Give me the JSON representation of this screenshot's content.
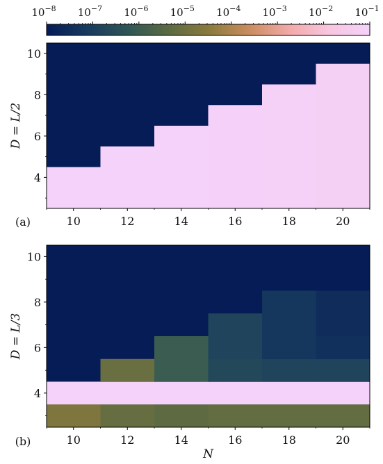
{
  "colorbar": {
    "scale": "log",
    "range": [
      1e-08,
      0.1
    ],
    "tick_labels": [
      {
        "base": "10",
        "exp": "−8"
      },
      {
        "base": "10",
        "exp": "−7"
      },
      {
        "base": "10",
        "exp": "−6"
      },
      {
        "base": "10",
        "exp": "−5"
      },
      {
        "base": "10",
        "exp": "−4"
      },
      {
        "base": "10",
        "exp": "−3"
      },
      {
        "base": "10",
        "exp": "−2"
      },
      {
        "base": "10",
        "exp": "−1"
      }
    ],
    "tick_values": [
      1e-08,
      1e-07,
      1e-06,
      1e-05,
      0.0001,
      0.001,
      0.01,
      0.1
    ],
    "colormap": [
      "#051c57",
      "#173a5e",
      "#2e5656",
      "#5a6a42",
      "#8a7a3e",
      "#c98c5e",
      "#f3a9a8",
      "#f7c6e0",
      "#f5d2fa"
    ]
  },
  "chart_data": [
    {
      "type": "heatmap",
      "panel_label": "(a)",
      "ylabel": "D = L/2",
      "xlabel": "",
      "x_ticks": [
        10,
        12,
        14,
        16,
        18,
        20
      ],
      "y_ticks": [
        4,
        6,
        8,
        10
      ],
      "xlim": [
        9,
        21
      ],
      "ylim": [
        2.5,
        10.5
      ],
      "grid": false,
      "background_value": 1e-08,
      "cells": [
        {
          "x0": 9,
          "x1": 11,
          "y0": 2.5,
          "y1": 4.5,
          "value": 0.1
        },
        {
          "x0": 11,
          "x1": 13,
          "y0": 2.5,
          "y1": 5.5,
          "value": 0.1
        },
        {
          "x0": 13,
          "x1": 15,
          "y0": 2.5,
          "y1": 6.5,
          "value": 0.1
        },
        {
          "x0": 15,
          "x1": 17,
          "y0": 2.5,
          "y1": 7.5,
          "value": 0.09
        },
        {
          "x0": 17,
          "x1": 19,
          "y0": 2.5,
          "y1": 8.5,
          "value": 0.08
        },
        {
          "x0": 19,
          "x1": 21,
          "y0": 2.5,
          "y1": 9.5,
          "value": 0.07
        }
      ]
    },
    {
      "type": "heatmap",
      "panel_label": "(b)",
      "ylabel": "D = L/3",
      "xlabel": "N",
      "x_ticks": [
        10,
        12,
        14,
        16,
        18,
        20
      ],
      "y_ticks": [
        4,
        6,
        8,
        10
      ],
      "xlim": [
        9,
        21
      ],
      "ylim": [
        2.5,
        10.5
      ],
      "grid": false,
      "background_value": 1e-08,
      "cells": [
        {
          "x0": 9,
          "x1": 21,
          "y0": 3.5,
          "y1": 4.5,
          "value": 0.1
        },
        {
          "x0": 9,
          "x1": 11,
          "y0": 2.5,
          "y1": 3.5,
          "value": 2e-05
        },
        {
          "x0": 11,
          "x1": 13,
          "y0": 2.5,
          "y1": 3.5,
          "value": 7e-06
        },
        {
          "x0": 13,
          "x1": 15,
          "y0": 2.5,
          "y1": 3.5,
          "value": 5e-06
        },
        {
          "x0": 15,
          "x1": 21,
          "y0": 2.5,
          "y1": 3.5,
          "value": 6e-06
        },
        {
          "x0": 11,
          "x1": 13,
          "y0": 4.5,
          "y1": 5.5,
          "value": 8e-06
        },
        {
          "x0": 13,
          "x1": 15,
          "y0": 4.5,
          "y1": 6.5,
          "value": 1e-06
        },
        {
          "x0": 15,
          "x1": 17,
          "y0": 4.5,
          "y1": 5.5,
          "value": 2e-07
        },
        {
          "x0": 15,
          "x1": 17,
          "y0": 5.5,
          "y1": 7.5,
          "value": 1.5e-07
        },
        {
          "x0": 17,
          "x1": 19,
          "y0": 4.5,
          "y1": 5.5,
          "value": 1.5e-07
        },
        {
          "x0": 17,
          "x1": 19,
          "y0": 5.5,
          "y1": 8.5,
          "value": 6e-08
        },
        {
          "x0": 19,
          "x1": 21,
          "y0": 4.5,
          "y1": 5.5,
          "value": 1.5e-07
        },
        {
          "x0": 19,
          "x1": 21,
          "y0": 5.5,
          "y1": 6.5,
          "value": 4e-08
        },
        {
          "x0": 19,
          "x1": 21,
          "y0": 6.5,
          "y1": 8.5,
          "value": 3e-08
        }
      ]
    }
  ]
}
